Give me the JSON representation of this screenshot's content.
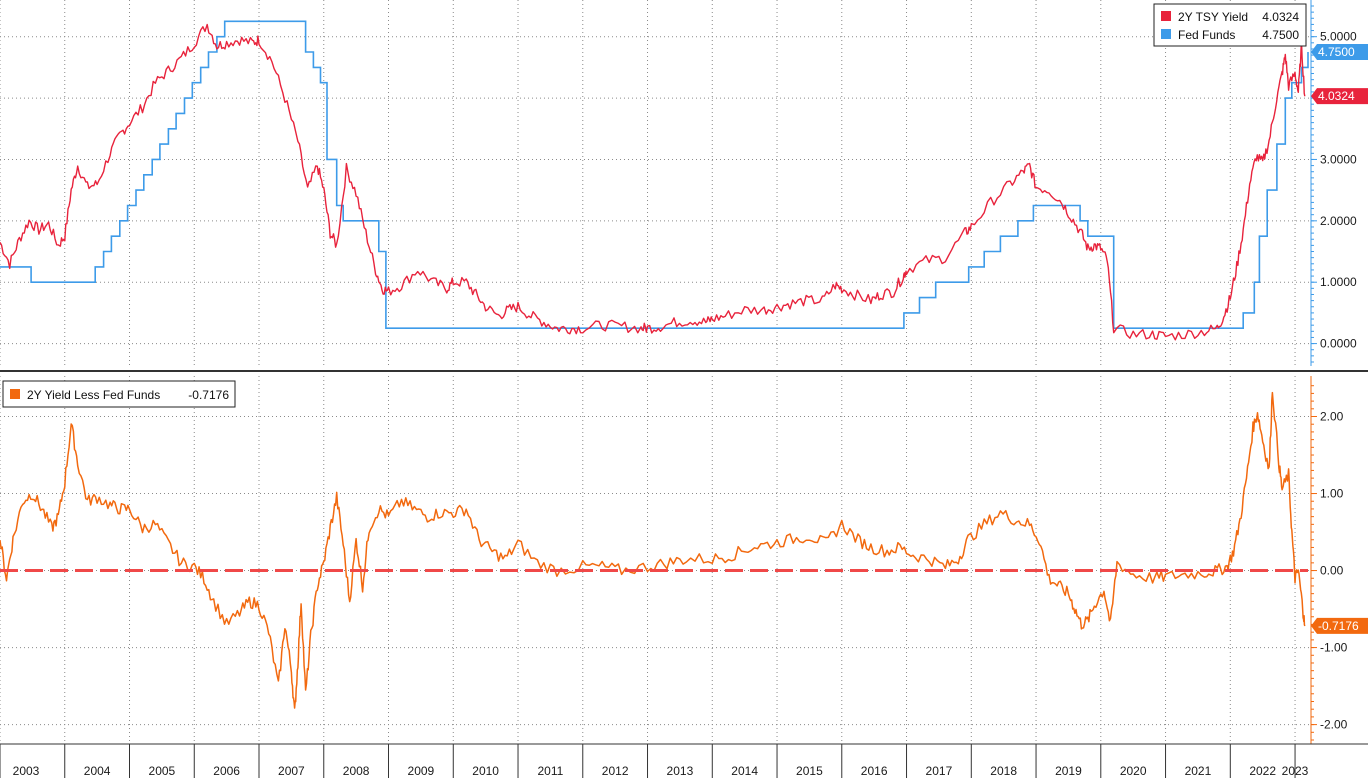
{
  "chart_data": [
    {
      "type": "line",
      "panel": "top",
      "x_range": [
        2003.0,
        2023.2
      ],
      "ylim": [
        -0.3,
        5.5
      ],
      "y_ticks": [
        "5.0000",
        "4.0000",
        "3.0000",
        "2.0000",
        "1.0000",
        "0.0000"
      ],
      "y_tick_values": [
        5,
        4,
        3,
        2,
        1,
        0
      ],
      "grid": true,
      "legend_position": "top-right",
      "series": [
        {
          "name": "2Y TSY Yield",
          "last": "4.0324",
          "color": "#e8233c",
          "x": [
            2003.0,
            2003.15,
            2003.3,
            2003.45,
            2003.6,
            2003.75,
            2003.9,
            2004.0,
            2004.1,
            2004.2,
            2004.35,
            2004.5,
            2004.7,
            2004.85,
            2005.0,
            2005.2,
            2005.4,
            2005.6,
            2005.8,
            2006.0,
            2006.2,
            2006.35,
            2006.5,
            2006.7,
            2006.9,
            2007.0,
            2007.2,
            2007.4,
            2007.6,
            2007.75,
            2007.9,
            2008.0,
            2008.1,
            2008.2,
            2008.35,
            2008.5,
            2008.65,
            2008.8,
            2008.9,
            2009.0,
            2009.2,
            2009.45,
            2009.7,
            2009.9,
            2010.0,
            2010.2,
            2010.35,
            2010.5,
            2010.7,
            2010.85,
            2011.0,
            2011.2,
            2011.4,
            2011.6,
            2011.8,
            2012.0,
            2012.3,
            2012.6,
            2012.9,
            2013.0,
            2013.2,
            2013.45,
            2013.7,
            2013.9,
            2014.0,
            2014.2,
            2014.5,
            2014.8,
            2015.0,
            2015.2,
            2015.45,
            2015.7,
            2015.9,
            2016.0,
            2016.2,
            2016.45,
            2016.6,
            2016.8,
            2016.95,
            2017.0,
            2017.3,
            2017.6,
            2017.9,
            2018.0,
            2018.3,
            2018.6,
            2018.8,
            2018.9,
            2019.0,
            2019.2,
            2019.4,
            2019.55,
            2019.7,
            2019.8,
            2019.9,
            2020.0,
            2020.1,
            2020.2,
            2020.5,
            2020.8,
            2021.0,
            2021.3,
            2021.6,
            2021.8,
            2021.9,
            2022.0,
            2022.1,
            2022.2,
            2022.3,
            2022.4,
            2022.5,
            2022.6,
            2022.7,
            2022.8,
            2022.85,
            2022.9,
            2023.0,
            2023.05,
            2023.1,
            2023.15
          ],
          "values": [
            1.65,
            1.3,
            1.7,
            2.0,
            1.85,
            1.95,
            1.6,
            1.75,
            2.5,
            2.9,
            2.55,
            2.6,
            3.1,
            3.4,
            3.6,
            3.85,
            4.25,
            4.45,
            4.65,
            4.9,
            5.2,
            4.85,
            4.9,
            4.95,
            4.9,
            4.95,
            4.6,
            4.0,
            3.3,
            2.5,
            2.9,
            2.5,
            1.8,
            1.6,
            2.85,
            2.45,
            1.8,
            1.2,
            0.9,
            0.85,
            0.95,
            1.2,
            1.0,
            0.9,
            1.0,
            1.0,
            0.8,
            0.6,
            0.45,
            0.55,
            0.6,
            0.45,
            0.35,
            0.25,
            0.25,
            0.25,
            0.3,
            0.28,
            0.25,
            0.25,
            0.28,
            0.35,
            0.38,
            0.35,
            0.4,
            0.45,
            0.55,
            0.55,
            0.6,
            0.65,
            0.7,
            0.7,
            0.95,
            0.9,
            0.8,
            0.7,
            0.8,
            0.85,
            1.1,
            1.2,
            1.35,
            1.4,
            1.8,
            1.9,
            2.3,
            2.6,
            2.8,
            2.9,
            2.55,
            2.5,
            2.3,
            2.05,
            1.8,
            1.55,
            1.6,
            1.55,
            1.35,
            0.25,
            0.15,
            0.15,
            0.12,
            0.15,
            0.2,
            0.25,
            0.45,
            0.75,
            1.25,
            1.85,
            2.6,
            3.05,
            2.95,
            3.3,
            3.9,
            4.4,
            4.7,
            4.2,
            4.4,
            4.1,
            4.85,
            4.03
          ]
        },
        {
          "name": "Fed Funds",
          "last": "4.7500",
          "color": "#3d9be9",
          "x": [
            2003.0,
            2003.2,
            2003.48,
            2004.12,
            2004.47,
            2004.6,
            2004.72,
            2004.85,
            2004.97,
            2005.1,
            2005.22,
            2005.35,
            2005.47,
            2005.6,
            2005.72,
            2005.85,
            2005.97,
            2006.1,
            2006.22,
            2006.35,
            2006.47,
            2007.62,
            2007.72,
            2007.84,
            2007.95,
            2008.05,
            2008.2,
            2008.3,
            2008.77,
            2008.85,
            2008.96,
            2015.96,
            2016.96,
            2017.2,
            2017.45,
            2017.96,
            2018.2,
            2018.45,
            2018.72,
            2018.96,
            2019.55,
            2019.68,
            2019.8,
            2020.15,
            2020.2,
            2021.96,
            2022.2,
            2022.37,
            2022.45,
            2022.57,
            2022.72,
            2022.85,
            2022.95,
            2023.1,
            2023.2
          ],
          "values": [
            1.25,
            1.25,
            1.0,
            1.0,
            1.25,
            1.5,
            1.75,
            2.0,
            2.25,
            2.5,
            2.75,
            3.0,
            3.25,
            3.5,
            3.75,
            4.0,
            4.25,
            4.5,
            4.75,
            5.0,
            5.25,
            5.25,
            4.75,
            4.5,
            4.25,
            3.0,
            2.25,
            2.0,
            2.0,
            1.5,
            0.25,
            0.25,
            0.5,
            0.75,
            1.0,
            1.25,
            1.5,
            1.75,
            2.0,
            2.25,
            2.25,
            2.0,
            1.75,
            1.75,
            0.25,
            0.25,
            0.5,
            1.0,
            1.75,
            2.5,
            3.25,
            4.0,
            4.25,
            4.5,
            4.75
          ]
        }
      ],
      "tags": [
        {
          "label": "4.7500",
          "value": 4.75,
          "color": "#3d9be9"
        },
        {
          "label": "4.0324",
          "value": 4.0324,
          "color": "#e8233c"
        }
      ]
    },
    {
      "type": "line",
      "panel": "bottom",
      "x_range": [
        2003.0,
        2023.2
      ],
      "ylim": [
        -2.2,
        2.5
      ],
      "y_ticks": [
        "2.00",
        "1.00",
        "0.00",
        "-1.00",
        "-2.00"
      ],
      "y_tick_values": [
        2,
        1,
        0,
        -1,
        -2
      ],
      "grid": true,
      "legend_position": "top-left",
      "reference_line": {
        "value": 0,
        "color": "#f04848",
        "style": "dashed"
      },
      "series": [
        {
          "name": "2Y Yield Less Fed Funds",
          "last": "-0.7176",
          "color": "#f2690f",
          "x": [
            2003.0,
            2003.1,
            2003.2,
            2003.35,
            2003.5,
            2003.65,
            2003.8,
            2003.9,
            2004.0,
            2004.1,
            2004.2,
            2004.35,
            2004.5,
            2004.7,
            2004.85,
            2005.0,
            2005.2,
            2005.4,
            2005.6,
            2005.8,
            2006.0,
            2006.15,
            2006.3,
            2006.5,
            2006.7,
            2006.85,
            2007.0,
            2007.15,
            2007.3,
            2007.4,
            2007.5,
            2007.55,
            2007.6,
            2007.65,
            2007.72,
            2007.8,
            2007.9,
            2008.0,
            2008.1,
            2008.2,
            2008.3,
            2008.4,
            2008.5,
            2008.6,
            2008.7,
            2008.85,
            2009.0,
            2009.2,
            2009.4,
            2009.6,
            2009.8,
            2010.0,
            2010.2,
            2010.4,
            2010.6,
            2010.8,
            2011.0,
            2011.3,
            2011.6,
            2012.0,
            2012.3,
            2012.6,
            2013.0,
            2013.3,
            2013.6,
            2014.0,
            2014.3,
            2014.6,
            2014.9,
            2015.2,
            2015.5,
            2015.75,
            2016.0,
            2016.25,
            2016.45,
            2016.7,
            2016.9,
            2017.1,
            2017.35,
            2017.6,
            2017.8,
            2017.95,
            2018.2,
            2018.45,
            2018.7,
            2018.9,
            2019.05,
            2019.2,
            2019.35,
            2019.5,
            2019.6,
            2019.7,
            2019.8,
            2019.9,
            2020.05,
            2020.15,
            2020.25,
            2020.5,
            2020.8,
            2021.0,
            2021.3,
            2021.6,
            2021.8,
            2021.95,
            2022.05,
            2022.15,
            2022.25,
            2022.35,
            2022.42,
            2022.5,
            2022.6,
            2022.65,
            2022.75,
            2022.8,
            2022.9,
            2022.95,
            2023.0,
            2023.05,
            2023.12,
            2023.15
          ],
          "values": [
            0.4,
            -0.1,
            0.4,
            0.9,
            1.0,
            0.8,
            0.55,
            0.7,
            1.15,
            1.9,
            1.4,
            0.9,
            0.95,
            0.85,
            0.8,
            0.8,
            0.55,
            0.6,
            0.35,
            0.1,
            0.05,
            -0.1,
            -0.4,
            -0.7,
            -0.55,
            -0.4,
            -0.45,
            -0.8,
            -1.5,
            -0.7,
            -1.3,
            -1.85,
            -1.2,
            -0.4,
            -1.6,
            -0.85,
            -0.2,
            0.1,
            0.55,
            0.95,
            0.35,
            -0.4,
            0.4,
            -0.2,
            0.55,
            0.8,
            0.7,
            0.9,
            0.8,
            0.7,
            0.75,
            0.75,
            0.8,
            0.4,
            0.25,
            0.15,
            0.35,
            0.1,
            0.0,
            0.05,
            0.05,
            0.0,
            0.05,
            0.1,
            0.15,
            0.15,
            0.2,
            0.3,
            0.35,
            0.4,
            0.45,
            0.35,
            0.6,
            0.4,
            0.3,
            0.25,
            0.3,
            0.2,
            0.15,
            0.05,
            0.15,
            0.4,
            0.6,
            0.75,
            0.65,
            0.6,
            0.4,
            -0.1,
            -0.2,
            -0.3,
            -0.5,
            -0.7,
            -0.65,
            -0.45,
            -0.25,
            -0.7,
            0.1,
            -0.05,
            -0.1,
            -0.08,
            -0.05,
            -0.03,
            0.0,
            0.05,
            0.25,
            0.65,
            1.2,
            1.85,
            2.05,
            1.7,
            1.3,
            2.35,
            1.4,
            1.05,
            1.25,
            0.5,
            -0.1,
            0.0,
            -0.5,
            -0.72
          ]
        }
      ],
      "tags": [
        {
          "label": "-0.7176",
          "value": -0.7176,
          "color": "#f2690f"
        }
      ]
    }
  ],
  "x_labels": [
    "2003",
    "2004",
    "2005",
    "2006",
    "2007",
    "2008",
    "2009",
    "2010",
    "2011",
    "2012",
    "2013",
    "2014",
    "2015",
    "2016",
    "2017",
    "2018",
    "2019",
    "2020",
    "2021",
    "2022",
    "2023"
  ],
  "legend_top": [
    {
      "name": "2Y TSY Yield",
      "value": "4.0324",
      "color": "#e8233c"
    },
    {
      "name": "Fed Funds",
      "value": "4.7500",
      "color": "#3d9be9"
    }
  ],
  "legend_bottom": [
    {
      "name": "2Y Yield Less Fed Funds",
      "value": "-0.7176",
      "color": "#f2690f"
    }
  ]
}
